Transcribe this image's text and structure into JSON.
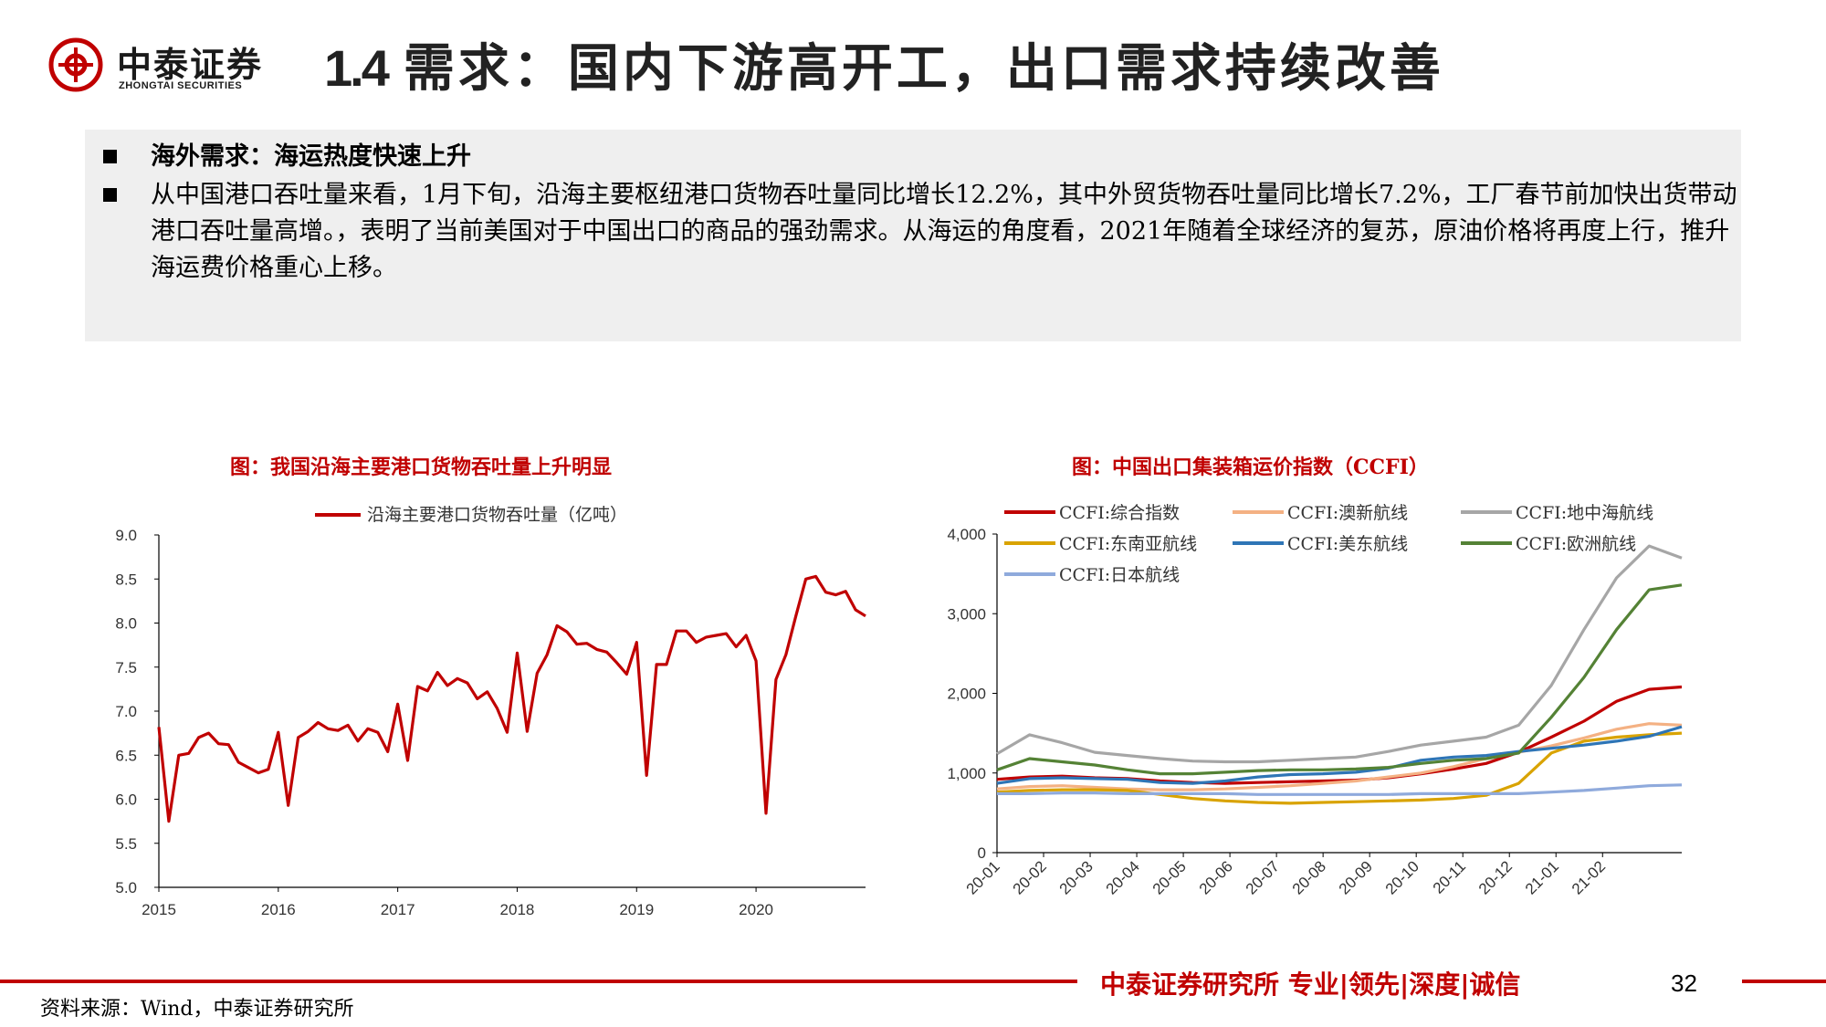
{
  "header": {
    "logo_cn": "中泰证券",
    "logo_en": "ZHONGTAI SECURITIES",
    "title_num": "1.4",
    "title_text": "需求：国内下游高开工，出口需求持续改善"
  },
  "summary": {
    "bullet1": "海外需求：海运热度快速上升",
    "bullet2": "从中国港口吞吐量来看，1月下旬，沿海主要枢纽港口货物吞吐量同比增长12.2%，其中外贸货物吞吐量同比增长7.2%，工厂春节前加快出货带动港口吞吐量高增。，表明了当前美国对于中国出口的商品的强劲需求。从海运的角度看，2021年随着全球经济的复苏，原油价格将再度上行，推升海运费价格重心上移。"
  },
  "footer": {
    "slogan": "中泰证券研究所 专业|领先|深度|诚信",
    "page_number": "32",
    "source": "资料来源：Wind，中泰证券研究所"
  },
  "colors": {
    "brand_red": "#c00000",
    "panel_gray": "#efefef"
  },
  "chart_data": [
    {
      "type": "line",
      "title": "图：我国沿海主要港口货物吞吐量上升明显",
      "xlabel": "",
      "ylabel": "",
      "ylim": [
        5.0,
        9.0
      ],
      "yticks": [
        "9.0",
        "8.5",
        "8.0",
        "7.5",
        "7.0",
        "6.5",
        "6.0",
        "5.5",
        "5.0"
      ],
      "xticks": [
        "2015",
        "2016",
        "2017",
        "2018",
        "2019",
        "2020"
      ],
      "legend_position": "top",
      "series": [
        {
          "name": "沿海主要港口货物吞吐量（亿吨）",
          "color": "#c00000",
          "values": [
            6.82,
            5.75,
            6.5,
            6.52,
            6.7,
            6.75,
            6.63,
            6.62,
            6.42,
            6.36,
            6.3,
            6.34,
            6.76,
            5.93,
            6.7,
            6.77,
            6.87,
            6.8,
            6.78,
            6.84,
            6.66,
            6.8,
            6.76,
            6.54,
            7.08,
            6.44,
            7.28,
            7.23,
            7.44,
            7.29,
            7.37,
            7.32,
            7.14,
            7.22,
            7.03,
            6.76,
            7.66,
            6.77,
            7.43,
            7.64,
            7.97,
            7.9,
            7.76,
            7.77,
            7.7,
            7.67,
            7.55,
            7.42,
            7.78,
            6.27,
            7.53,
            7.53,
            7.91,
            7.91,
            7.78,
            7.84,
            7.86,
            7.88,
            7.73,
            7.86,
            7.57,
            5.84,
            7.36,
            7.64,
            8.08,
            8.5,
            8.53,
            8.35,
            8.32,
            8.36,
            8.15,
            8.08
          ]
        }
      ]
    },
    {
      "type": "line",
      "title": "图：中国出口集装箱运价指数（CCFI）",
      "xlabel": "",
      "ylabel": "",
      "ylim": [
        0,
        4000
      ],
      "yticks": [
        "4,000",
        "3,000",
        "2,000",
        "1,000",
        "0"
      ],
      "xticks": [
        "20-01",
        "20-02",
        "20-03",
        "20-04",
        "20-05",
        "20-06",
        "20-07",
        "20-08",
        "20-09",
        "20-10",
        "20-11",
        "20-12",
        "21-01",
        "21-02"
      ],
      "legend_position": "top",
      "series": [
        {
          "name": "CCFI:综合指数",
          "color": "#c00000",
          "values": [
            920,
            950,
            960,
            940,
            930,
            900,
            880,
            870,
            880,
            890,
            900,
            910,
            940,
            990,
            1050,
            1120,
            1260,
            1450,
            1650,
            1900,
            2050,
            2080
          ]
        },
        {
          "name": "CCFI:澳新航线",
          "color": "#f4b183",
          "values": [
            800,
            830,
            840,
            820,
            800,
            790,
            790,
            800,
            820,
            840,
            870,
            900,
            950,
            1000,
            1080,
            1180,
            1260,
            1340,
            1440,
            1550,
            1620,
            1600
          ]
        },
        {
          "name": "CCFI:地中海航线",
          "color": "#a6a6a6",
          "values": [
            1240,
            1480,
            1380,
            1260,
            1220,
            1180,
            1150,
            1140,
            1140,
            1160,
            1180,
            1200,
            1270,
            1350,
            1400,
            1450,
            1600,
            2100,
            2800,
            3450,
            3850,
            3700
          ]
        },
        {
          "name": "CCFI:东南亚航线",
          "color": "#d9a300",
          "values": [
            760,
            780,
            790,
            790,
            780,
            730,
            680,
            650,
            630,
            620,
            630,
            640,
            650,
            660,
            680,
            720,
            870,
            1250,
            1400,
            1450,
            1480,
            1500
          ]
        },
        {
          "name": "CCFI:美东航线",
          "color": "#2e75b6",
          "values": [
            870,
            930,
            940,
            930,
            920,
            880,
            870,
            900,
            950,
            980,
            990,
            1010,
            1060,
            1160,
            1200,
            1220,
            1270,
            1310,
            1350,
            1400,
            1460,
            1580
          ]
        },
        {
          "name": "CCFI:欧洲航线",
          "color": "#548235",
          "values": [
            1040,
            1180,
            1140,
            1100,
            1040,
            990,
            990,
            1010,
            1030,
            1040,
            1040,
            1050,
            1070,
            1120,
            1160,
            1180,
            1250,
            1700,
            2200,
            2800,
            3300,
            3360
          ]
        },
        {
          "name": "CCFI:日本航线",
          "color": "#8faadc",
          "values": [
            740,
            740,
            750,
            750,
            740,
            740,
            740,
            740,
            730,
            730,
            730,
            730,
            730,
            740,
            740,
            740,
            740,
            760,
            780,
            810,
            840,
            850
          ]
        }
      ]
    }
  ]
}
